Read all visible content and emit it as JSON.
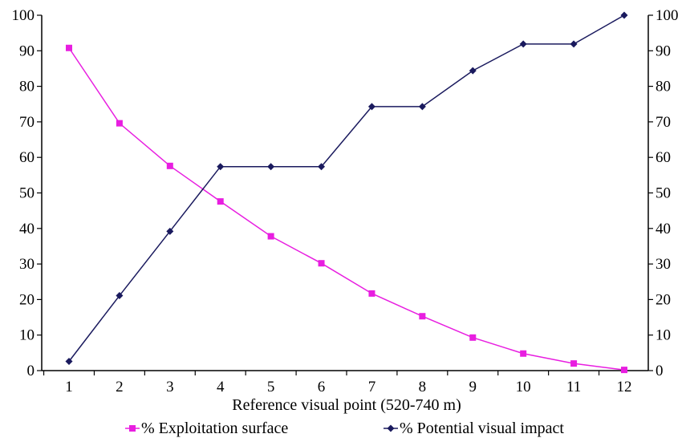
{
  "chart_data": {
    "type": "line",
    "title": "",
    "xlabel": "Reference visual point (520-740 m)",
    "ylabel": "",
    "categories": [
      "1",
      "2",
      "3",
      "4",
      "5",
      "6",
      "7",
      "8",
      "9",
      "10",
      "11",
      "12"
    ],
    "ylim": [
      0,
      100
    ],
    "yticks": [
      "0",
      "10",
      "20",
      "30",
      "40",
      "50",
      "60",
      "70",
      "80",
      "90",
      "100"
    ],
    "y2lim": [
      0,
      100
    ],
    "y2ticks": [
      "0",
      "10",
      "20",
      "30",
      "40",
      "50",
      "60",
      "70",
      "80",
      "90",
      "100"
    ],
    "grid": false,
    "legend_position": "bottom",
    "series": [
      {
        "name": "% Exploitation surface",
        "color": "#e81ee0",
        "marker": "square",
        "values": [
          90.8,
          69.6,
          57.6,
          47.6,
          37.8,
          30.2,
          21.7,
          15.3,
          9.3,
          4.8,
          2.0,
          0.2
        ]
      },
      {
        "name": "% Potential visual impact",
        "color": "#1a1a5e",
        "marker": "diamond",
        "values": [
          2.6,
          21.1,
          39.2,
          57.4,
          57.4,
          57.4,
          74.3,
          74.3,
          84.4,
          91.9,
          91.9,
          100
        ]
      }
    ]
  }
}
